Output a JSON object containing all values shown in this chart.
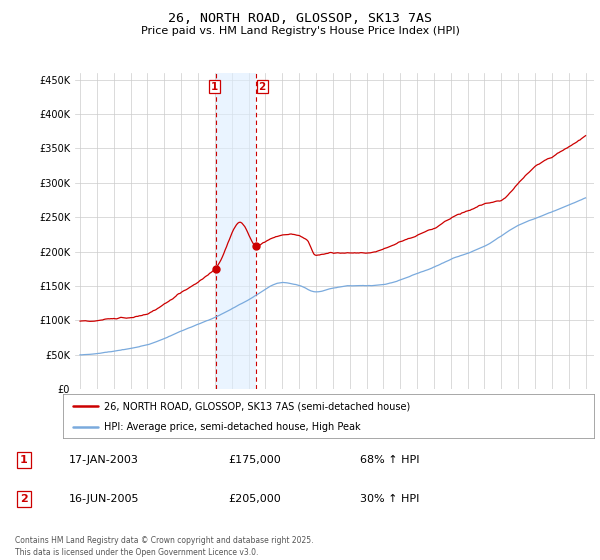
{
  "title": "26, NORTH ROAD, GLOSSOP, SK13 7AS",
  "subtitle": "Price paid vs. HM Land Registry's House Price Index (HPI)",
  "legend_line1": "26, NORTH ROAD, GLOSSOP, SK13 7AS (semi-detached house)",
  "legend_line2": "HPI: Average price, semi-detached house, High Peak",
  "sale1_date_label": "17-JAN-2003",
  "sale1_price_label": "£175,000",
  "sale1_hpi_label": "68% ↑ HPI",
  "sale1_year": 2003.04,
  "sale1_value": 175000,
  "sale2_date_label": "16-JUN-2005",
  "sale2_price_label": "£205,000",
  "sale2_hpi_label": "30% ↑ HPI",
  "sale2_year": 2005.46,
  "sale2_value": 205000,
  "red_color": "#cc0000",
  "blue_color": "#7aaadd",
  "shade_color": "#ddeeff",
  "grid_color": "#cccccc",
  "bg_color": "#ffffff",
  "ylim": [
    0,
    460000
  ],
  "xlim_start": 1994.7,
  "xlim_end": 2025.5,
  "yticks": [
    0,
    50000,
    100000,
    150000,
    200000,
    250000,
    300000,
    350000,
    400000,
    450000
  ],
  "ylabels": [
    "£0",
    "£50K",
    "£100K",
    "£150K",
    "£200K",
    "£250K",
    "£300K",
    "£350K",
    "£400K",
    "£450K"
  ],
  "footer": "Contains HM Land Registry data © Crown copyright and database right 2025.\nThis data is licensed under the Open Government Licence v3.0."
}
